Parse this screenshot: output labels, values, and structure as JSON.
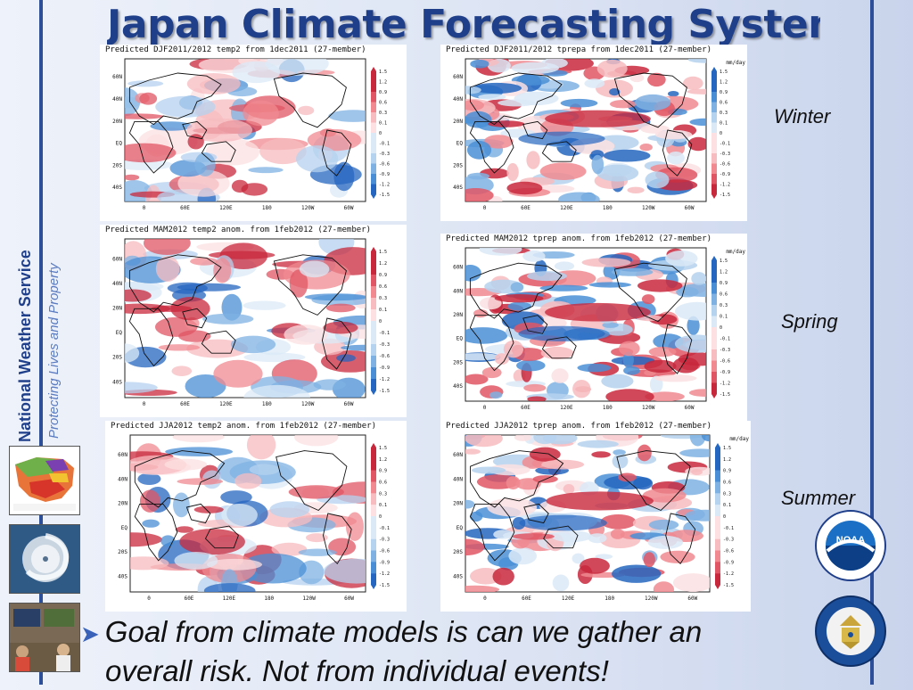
{
  "title": "Japan Climate Forecasting System",
  "sidebar": {
    "org_name": "National Weather Service",
    "motto": "Protecting Lives and Property"
  },
  "seasons": [
    "Winter",
    "Spring",
    "Summer"
  ],
  "panels": [
    {
      "id": "djf-temp",
      "title": "Predicted DJF2011/2012 temp2 from 1dec2011 (27-member)",
      "variable": "temperature",
      "unit": ""
    },
    {
      "id": "djf-prec",
      "title": "Predicted DJF2011/2012 tprepa from 1dec2011 (27-member)",
      "variable": "precipitation",
      "unit": "mm/day"
    },
    {
      "id": "mam-temp",
      "title": "Predicted MAM2012 temp2 anom. from 1feb2012 (27-member)",
      "variable": "temperature",
      "unit": ""
    },
    {
      "id": "mam-prec",
      "title": "Predicted MAM2012 tprep anom. from 1feb2012 (27-member)",
      "variable": "precipitation",
      "unit": "mm/day"
    },
    {
      "id": "jja-temp",
      "title": "Predicted JJA2012 temp2 anom. from 1feb2012 (27-member)",
      "variable": "temperature",
      "unit": ""
    },
    {
      "id": "jja-prec",
      "title": "Predicted JJA2012 tprep anom. from 1feb2012 (27-member)",
      "variable": "precipitation",
      "unit": "mm/day"
    }
  ],
  "map_axes": {
    "lat_labels": [
      "60N",
      "40N",
      "20N",
      "EQ",
      "20S",
      "40S"
    ],
    "lon_labels": [
      "0",
      "60E",
      "120E",
      "180",
      "120W",
      "60W"
    ]
  },
  "colorbar_ticks": [
    "1.5",
    "1.2",
    "0.9",
    "0.6",
    "0.3",
    "0.1",
    "0",
    "-0.1",
    "-0.3",
    "-0.6",
    "-0.9",
    "-1.2",
    "-1.5"
  ],
  "colors": {
    "warm": [
      "#c8283c",
      "#e05664",
      "#f08a90",
      "#f7bcc0",
      "#fce0e2"
    ],
    "cool": [
      "#dbe9f7",
      "#b5d2ef",
      "#7fb2e3",
      "#4a8fd6",
      "#2566c0"
    ]
  },
  "logos": {
    "noaa_text": "NOAA"
  },
  "goal_text": {
    "line1": "Goal from climate models is can we gather an",
    "line2": "overall risk. Not from individual events!"
  }
}
